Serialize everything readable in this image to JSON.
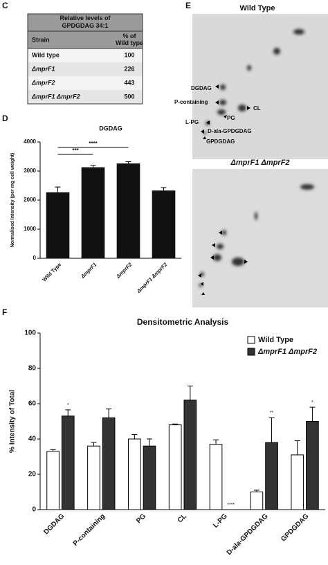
{
  "panels": {
    "c": "C",
    "d": "D",
    "e": "E",
    "f": "F"
  },
  "table": {
    "title": "Relative levels of GPDGDAG 34:1",
    "header": [
      "Strain",
      "% of Wild type"
    ],
    "rows": [
      [
        "Wild type",
        "100"
      ],
      [
        "ΔmprF1",
        "226"
      ],
      [
        "ΔmprF2",
        "443"
      ],
      [
        "ΔmprF1 ΔmprF2",
        "500"
      ]
    ]
  },
  "tlc": [
    {
      "title": "Wild Type",
      "labels": [
        "DGDAG",
        "P-containing",
        "PG",
        "CL",
        "L-PG",
        "D-ala-GPDGDAG",
        "GPDGDAG"
      ]
    },
    {
      "title": "ΔmprF1 ΔmprF2"
    }
  ],
  "chart_data": [
    {
      "type": "bar",
      "title": "DGDAG",
      "y_label": "Normalised Intensity (per mg cell weight)",
      "categories": [
        "Wild Type",
        "ΔmprF1",
        "ΔmprF2",
        "ΔmprF1 ΔmprF2"
      ],
      "values": [
        2270,
        3130,
        3260,
        2330
      ],
      "errors": [
        180,
        70,
        60,
        100
      ],
      "color": "#111111",
      "significance": [
        "***",
        "****"
      ],
      "ylim": [
        0,
        4000
      ],
      "yticks": [
        0,
        1000,
        2000,
        3000,
        4000
      ]
    },
    {
      "type": "grouped_bar",
      "title": "Densitometric Analysis",
      "y_label": "% Intensity of Total",
      "categories": [
        "DGDAG",
        "P-containing",
        "PG",
        "CL",
        "L-PG",
        "D-ala-GPDGDAG",
        "GPDGDAG"
      ],
      "series": [
        {
          "name": "Wild Type",
          "color": "#ffffff",
          "values": [
            33,
            36,
            40,
            48,
            37,
            10,
            31
          ],
          "errors": [
            1,
            2,
            2.5,
            0.5,
            2.5,
            1,
            8
          ],
          "significance": [
            null,
            null,
            null,
            null,
            null,
            null,
            null
          ]
        },
        {
          "name": "ΔmprF1 ΔmprF2",
          "color": "#333333",
          "values": [
            53,
            52,
            36,
            62,
            0,
            38,
            50
          ],
          "errors": [
            3.5,
            5,
            4,
            8,
            0,
            14,
            8
          ],
          "significance": [
            "*",
            null,
            null,
            null,
            "****",
            "**",
            "*"
          ]
        }
      ],
      "ylim": [
        0,
        100
      ],
      "yticks": [
        0,
        20,
        40,
        60,
        80,
        100
      ],
      "legend": "upper right"
    }
  ]
}
